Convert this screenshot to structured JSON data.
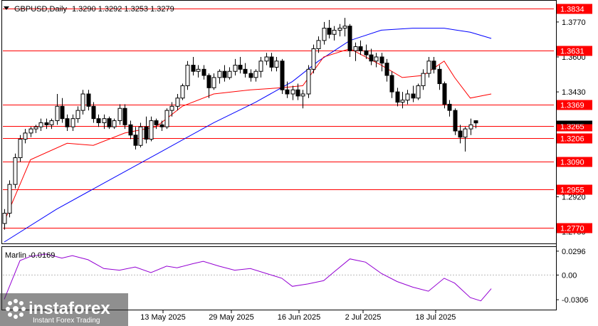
{
  "header": {
    "symbol": "GBPUSD,Daily",
    "ohlc": "1.3290 1.3292 1.3253 1.3279"
  },
  "indicator_label": "Marlin -0.0169",
  "watermark": {
    "brand": "instaforex",
    "tagline": "Instant Forex Trading"
  },
  "colors": {
    "candle": "#000000",
    "level_line": "#ff0000",
    "level_badge": "#ff0000",
    "ma_fast": "#ff0000",
    "ma_slow": "#0000ff",
    "oscillator": "#9400d3",
    "current_badge": "#000000"
  },
  "chart_data": [
    {
      "type": "candlestick",
      "ylim": [
        1.27,
        1.387
      ],
      "current_price": 1.3279,
      "y_ticks": [
        "1.3770",
        "1.3600",
        "1.3430",
        "1.3090",
        "1.2920",
        "1.2750"
      ],
      "x_ticks": [
        "13 May 2025",
        "29 May 2025",
        "16 Jun 2025",
        "2 Jul 2025",
        "18 Jul 2025"
      ],
      "levels": [
        "1.3834",
        "1.3631",
        "1.3369",
        "1.3265",
        "1.3206",
        "1.3090",
        "1.2955",
        "1.2770"
      ],
      "candles": [
        [
          1.279,
          1.286,
          1.276,
          1.284
        ],
        [
          1.284,
          1.3,
          1.282,
          1.298
        ],
        [
          1.298,
          1.313,
          1.296,
          1.311
        ],
        [
          1.311,
          1.322,
          1.309,
          1.32
        ],
        [
          1.32,
          1.325,
          1.318,
          1.323
        ],
        [
          1.323,
          1.326,
          1.321,
          1.325
        ],
        [
          1.325,
          1.327,
          1.323,
          1.326
        ],
        [
          1.326,
          1.33,
          1.324,
          1.328
        ],
        [
          1.328,
          1.33,
          1.325,
          1.327
        ],
        [
          1.327,
          1.33,
          1.325,
          1.329
        ],
        [
          1.329,
          1.342,
          1.327,
          1.336
        ],
        [
          1.336,
          1.34,
          1.328,
          1.33
        ],
        [
          1.33,
          1.332,
          1.324,
          1.326
        ],
        [
          1.326,
          1.332,
          1.324,
          1.33
        ],
        [
          1.33,
          1.336,
          1.328,
          1.334
        ],
        [
          1.334,
          1.344,
          1.332,
          1.342
        ],
        [
          1.342,
          1.344,
          1.334,
          1.336
        ],
        [
          1.336,
          1.338,
          1.328,
          1.33
        ],
        [
          1.33,
          1.332,
          1.326,
          1.328
        ],
        [
          1.328,
          1.332,
          1.325,
          1.33
        ],
        [
          1.33,
          1.331,
          1.325,
          1.326
        ],
        [
          1.326,
          1.33,
          1.325,
          1.329
        ],
        [
          1.329,
          1.337,
          1.327,
          1.335
        ],
        [
          1.335,
          1.337,
          1.325,
          1.327
        ],
        [
          1.327,
          1.329,
          1.32,
          1.322
        ],
        [
          1.322,
          1.326,
          1.315,
          1.317
        ],
        [
          1.317,
          1.328,
          1.316,
          1.326
        ],
        [
          1.326,
          1.331,
          1.318,
          1.32
        ],
        [
          1.32,
          1.331,
          1.319,
          1.329
        ],
        [
          1.329,
          1.33,
          1.325,
          1.327
        ],
        [
          1.327,
          1.329,
          1.324,
          1.326
        ],
        [
          1.326,
          1.335,
          1.325,
          1.334
        ],
        [
          1.334,
          1.338,
          1.331,
          1.336
        ],
        [
          1.336,
          1.342,
          1.334,
          1.34
        ],
        [
          1.34,
          1.347,
          1.339,
          1.346
        ],
        [
          1.346,
          1.358,
          1.344,
          1.356
        ],
        [
          1.356,
          1.36,
          1.351,
          1.353
        ],
        [
          1.353,
          1.356,
          1.35,
          1.354
        ],
        [
          1.354,
          1.356,
          1.349,
          1.351
        ],
        [
          1.351,
          1.352,
          1.34,
          1.345
        ],
        [
          1.345,
          1.352,
          1.344,
          1.35
        ],
        [
          1.35,
          1.354,
          1.347,
          1.353
        ],
        [
          1.353,
          1.356,
          1.348,
          1.35
        ],
        [
          1.35,
          1.355,
          1.349,
          1.353
        ],
        [
          1.353,
          1.359,
          1.351,
          1.356
        ],
        [
          1.356,
          1.36,
          1.352,
          1.354
        ],
        [
          1.354,
          1.357,
          1.35,
          1.352
        ],
        [
          1.352,
          1.354,
          1.348,
          1.35
        ],
        [
          1.35,
          1.354,
          1.348,
          1.353
        ],
        [
          1.353,
          1.36,
          1.35,
          1.358
        ],
        [
          1.358,
          1.362,
          1.356,
          1.36
        ],
        [
          1.36,
          1.362,
          1.353,
          1.355
        ],
        [
          1.355,
          1.36,
          1.353,
          1.358
        ],
        [
          1.358,
          1.359,
          1.342,
          1.344
        ],
        [
          1.344,
          1.348,
          1.34,
          1.342
        ],
        [
          1.342,
          1.346,
          1.339,
          1.344
        ],
        [
          1.344,
          1.347,
          1.339,
          1.341
        ],
        [
          1.341,
          1.344,
          1.335,
          1.342
        ],
        [
          1.342,
          1.356,
          1.34,
          1.354
        ],
        [
          1.354,
          1.366,
          1.352,
          1.364
        ],
        [
          1.364,
          1.37,
          1.362,
          1.368
        ],
        [
          1.368,
          1.377,
          1.366,
          1.374
        ],
        [
          1.374,
          1.378,
          1.369,
          1.371
        ],
        [
          1.371,
          1.375,
          1.368,
          1.373
        ],
        [
          1.373,
          1.376,
          1.37,
          1.374
        ],
        [
          1.374,
          1.379,
          1.37,
          1.375
        ],
        [
          1.375,
          1.376,
          1.36,
          1.363
        ],
        [
          1.363,
          1.367,
          1.358,
          1.365
        ],
        [
          1.365,
          1.368,
          1.361,
          1.363
        ],
        [
          1.363,
          1.366,
          1.359,
          1.361
        ],
        [
          1.361,
          1.364,
          1.356,
          1.358
        ],
        [
          1.358,
          1.362,
          1.355,
          1.36
        ],
        [
          1.36,
          1.362,
          1.353,
          1.357
        ],
        [
          1.357,
          1.359,
          1.348,
          1.351
        ],
        [
          1.351,
          1.353,
          1.34,
          1.343
        ],
        [
          1.343,
          1.345,
          1.336,
          1.338
        ],
        [
          1.338,
          1.343,
          1.335,
          1.339
        ],
        [
          1.339,
          1.344,
          1.337,
          1.342
        ],
        [
          1.342,
          1.346,
          1.338,
          1.34
        ],
        [
          1.34,
          1.347,
          1.339,
          1.346
        ],
        [
          1.346,
          1.354,
          1.344,
          1.352
        ],
        [
          1.352,
          1.36,
          1.35,
          1.358
        ],
        [
          1.358,
          1.36,
          1.352,
          1.354
        ],
        [
          1.354,
          1.356,
          1.344,
          1.347
        ],
        [
          1.347,
          1.348,
          1.335,
          1.337
        ],
        [
          1.337,
          1.339,
          1.331,
          1.334
        ],
        [
          1.334,
          1.335,
          1.322,
          1.324
        ],
        [
          1.324,
          1.327,
          1.318,
          1.321
        ],
        [
          1.321,
          1.326,
          1.314,
          1.325
        ],
        [
          1.325,
          1.33,
          1.322,
          1.327
        ],
        [
          1.329,
          1.3292,
          1.3253,
          1.3279
        ]
      ],
      "ma_fast": [
        [
          0,
          1.28
        ],
        [
          5,
          1.31
        ],
        [
          12,
          1.318
        ],
        [
          17,
          1.317
        ],
        [
          23,
          1.323
        ],
        [
          29,
          1.326
        ],
        [
          34,
          1.336
        ],
        [
          40,
          1.342
        ],
        [
          47,
          1.344
        ],
        [
          53,
          1.345
        ],
        [
          57,
          1.346
        ],
        [
          61,
          1.36
        ],
        [
          66,
          1.364
        ],
        [
          72,
          1.356
        ],
        [
          76,
          1.35
        ],
        [
          80,
          1.351
        ],
        [
          84,
          1.358
        ],
        [
          86,
          1.35
        ],
        [
          89,
          1.34
        ],
        [
          93,
          1.342
        ]
      ],
      "ma_slow": [
        [
          0,
          1.27
        ],
        [
          10,
          1.286
        ],
        [
          20,
          1.3
        ],
        [
          30,
          1.314
        ],
        [
          40,
          1.328
        ],
        [
          48,
          1.338
        ],
        [
          55,
          1.348
        ],
        [
          60,
          1.358
        ],
        [
          66,
          1.368
        ],
        [
          72,
          1.373
        ],
        [
          78,
          1.374
        ],
        [
          84,
          1.374
        ],
        [
          89,
          1.372
        ],
        [
          93,
          1.369
        ]
      ]
    },
    {
      "type": "line",
      "name": "Marlin",
      "ylim": [
        -0.042,
        0.033
      ],
      "y_ticks": [
        "0.0296",
        "0.00",
        "-0.0306"
      ],
      "values": [
        [
          0,
          -0.03
        ],
        [
          3,
          0.018
        ],
        [
          5,
          0.023
        ],
        [
          8,
          0.026
        ],
        [
          11,
          0.021
        ],
        [
          13,
          0.024
        ],
        [
          16,
          0.019
        ],
        [
          19,
          0.008
        ],
        [
          22,
          0.006
        ],
        [
          25,
          0.01
        ],
        [
          28,
          0.003
        ],
        [
          31,
          0.011
        ],
        [
          33,
          0.009
        ],
        [
          36,
          0.014
        ],
        [
          38,
          0.017
        ],
        [
          41,
          0.011
        ],
        [
          44,
          0.006
        ],
        [
          47,
          0.008
        ],
        [
          50,
          0.002
        ],
        [
          53,
          -0.004
        ],
        [
          55,
          -0.014
        ],
        [
          58,
          -0.011
        ],
        [
          61,
          -0.007
        ],
        [
          63,
          0.004
        ],
        [
          66,
          0.02
        ],
        [
          69,
          0.016
        ],
        [
          72,
          0.002
        ],
        [
          75,
          -0.008
        ],
        [
          78,
          -0.015
        ],
        [
          81,
          -0.02
        ],
        [
          84,
          -0.004
        ],
        [
          86,
          -0.01
        ],
        [
          89,
          -0.028
        ],
        [
          91,
          -0.032
        ],
        [
          93,
          -0.0169
        ]
      ]
    }
  ]
}
